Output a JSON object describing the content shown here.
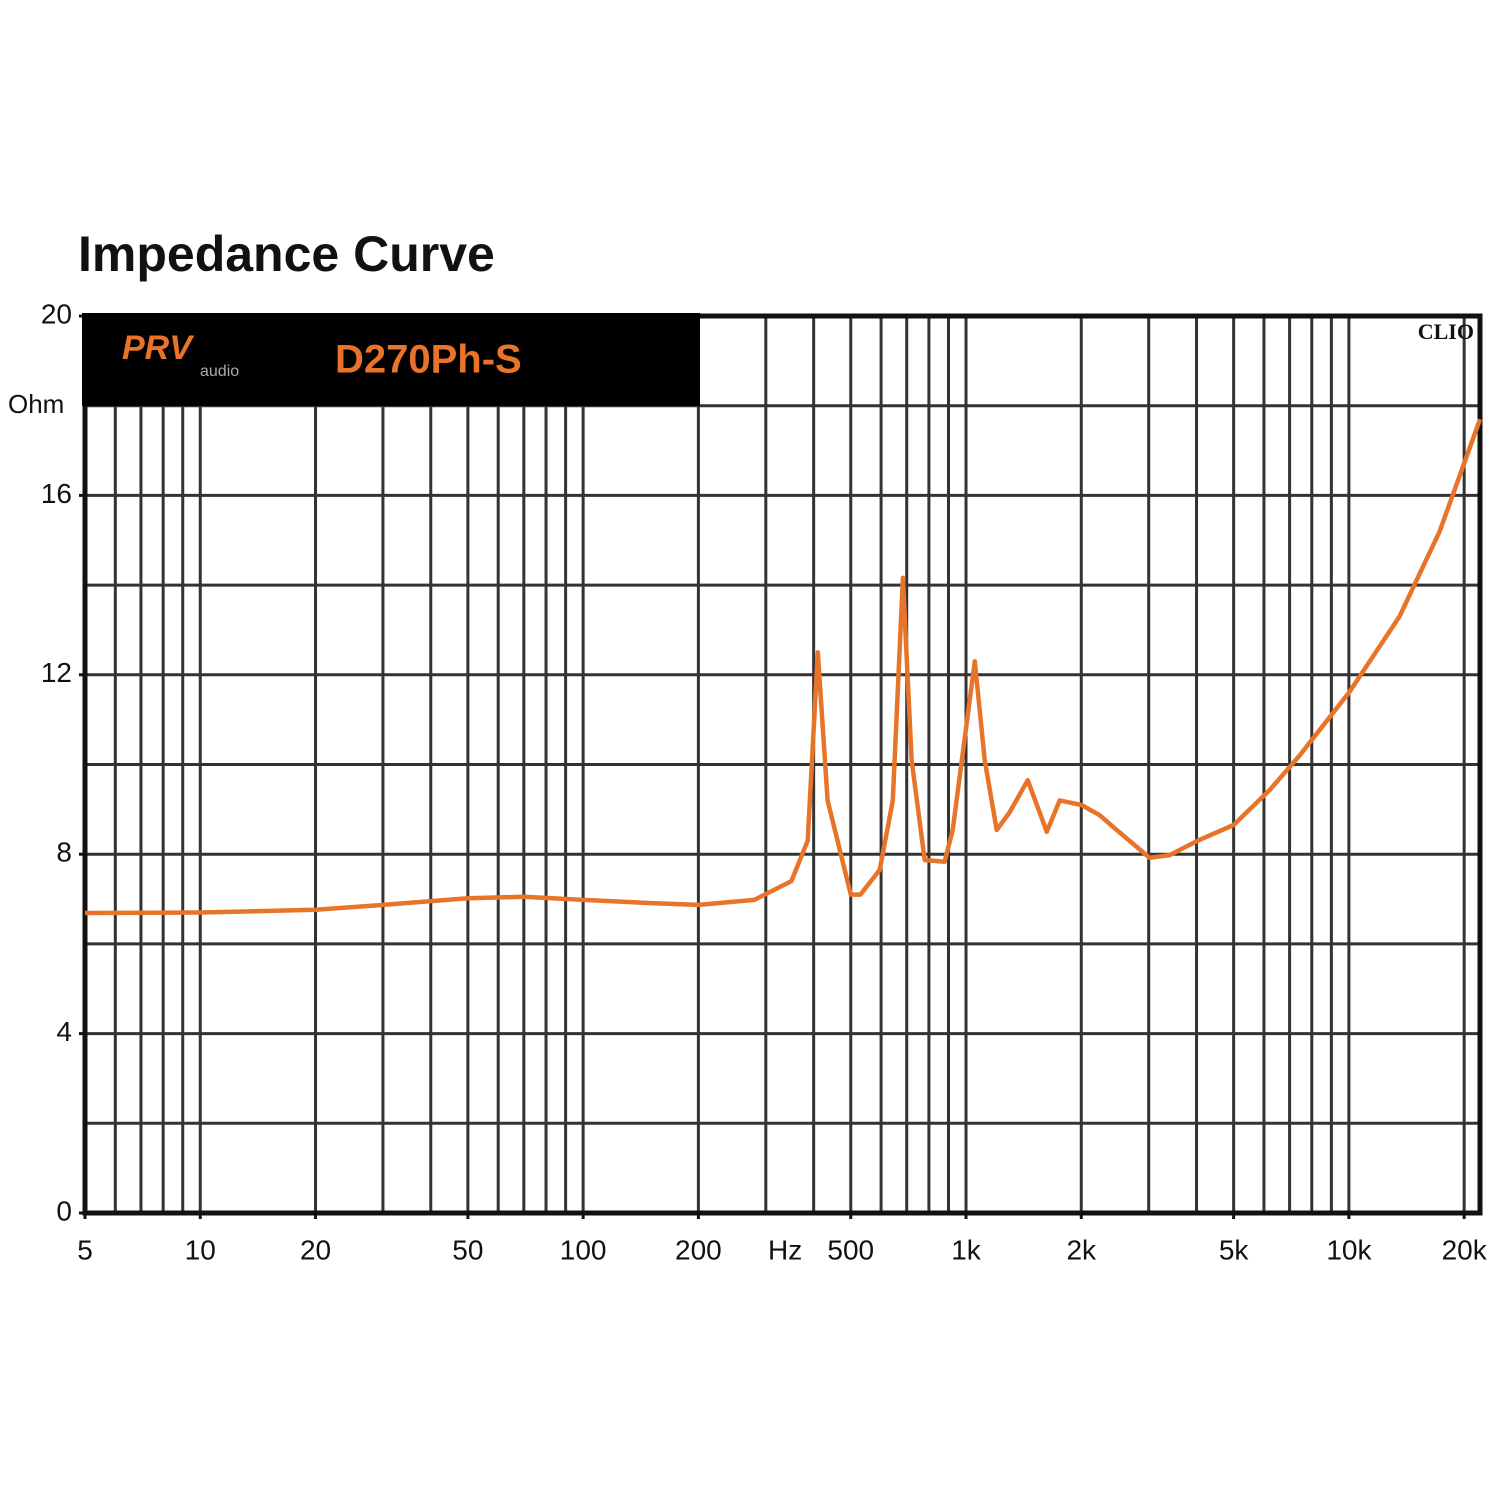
{
  "chart_data": {
    "type": "line",
    "title": "Impedance Curve",
    "brand": "PRV",
    "brand_sub": "audio",
    "model": "D270Ph-S",
    "software": "CLIO",
    "x_unit": "Hz",
    "y_unit": "Ohm",
    "xscale": "log",
    "color": "#e8742a",
    "x": [
      5,
      10,
      20,
      30,
      50,
      70,
      100,
      150,
      200,
      280,
      350,
      386,
      410,
      435,
      500,
      530,
      595,
      644,
      684,
      721,
      780,
      879,
      923,
      1054,
      1119,
      1203,
      1301,
      1449,
      1626,
      1757,
      2000,
      2234,
      2444,
      3016,
      3402,
      4074,
      5000,
      6208,
      7434,
      10000,
      13560,
      17260,
      22000
    ],
    "values": [
      6.69,
      6.7,
      6.76,
      6.87,
      7.02,
      7.05,
      6.98,
      6.91,
      6.87,
      6.98,
      7.4,
      8.3,
      12.5,
      9.2,
      7.1,
      7.1,
      7.65,
      9.2,
      14.16,
      10.1,
      7.87,
      7.83,
      8.54,
      12.3,
      10.1,
      8.54,
      8.94,
      9.65,
      8.5,
      9.2,
      9.1,
      8.87,
      8.58,
      7.92,
      7.98,
      8.32,
      8.65,
      9.43,
      10.2,
      11.6,
      13.3,
      15.2,
      17.7
    ],
    "xlim": [
      5,
      22000
    ],
    "ylim": [
      0,
      20
    ],
    "xticks": [
      5,
      10,
      20,
      50,
      100,
      200,
      500,
      {
        "value": 1000,
        "label": "1k"
      },
      {
        "value": 2000,
        "label": "2k"
      },
      {
        "value": 5000,
        "label": "5k"
      },
      {
        "value": 10000,
        "label": "10k"
      },
      {
        "value": 20000,
        "label": "20k"
      }
    ],
    "yticks": [
      0,
      4,
      8,
      12,
      16,
      20
    ],
    "xgrid": [
      6,
      7,
      8,
      9,
      10,
      20,
      30,
      40,
      50,
      60,
      70,
      80,
      90,
      100,
      200,
      300,
      400,
      500,
      600,
      700,
      800,
      900,
      1000,
      2000,
      3000,
      4000,
      5000,
      6000,
      7000,
      8000,
      9000,
      10000,
      20000
    ],
    "ygrid": [
      2,
      4,
      6,
      8,
      10,
      12,
      14,
      16,
      18
    ],
    "grid": true
  }
}
